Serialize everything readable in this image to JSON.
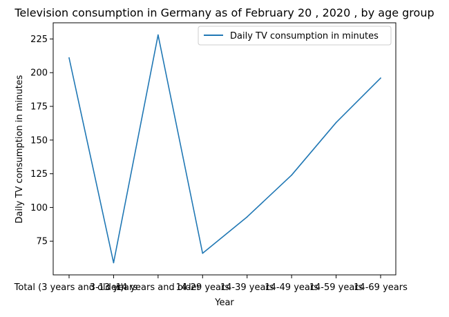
{
  "chart_data": {
    "type": "line",
    "title": "Television consumption in Germany as of February 20 , 2020 , by age group",
    "xlabel": "Year",
    "ylabel": "Daily TV consumption in minutes",
    "categories": [
      "Total (3 years and older)",
      "3-13 years",
      "14 years and older",
      "14-29 years",
      "14-39 years",
      "14-49 years",
      "14-59 years",
      "14-69 years"
    ],
    "series": [
      {
        "name": "Daily TV consumption in minutes",
        "values": [
          211,
          59,
          228,
          66,
          93,
          124,
          163,
          196
        ],
        "color": "#1f77b4"
      }
    ],
    "ylim": [
      50,
      237
    ],
    "yticks": [
      75,
      100,
      125,
      150,
      175,
      200,
      225
    ],
    "grid": false,
    "legend": "top-right"
  }
}
